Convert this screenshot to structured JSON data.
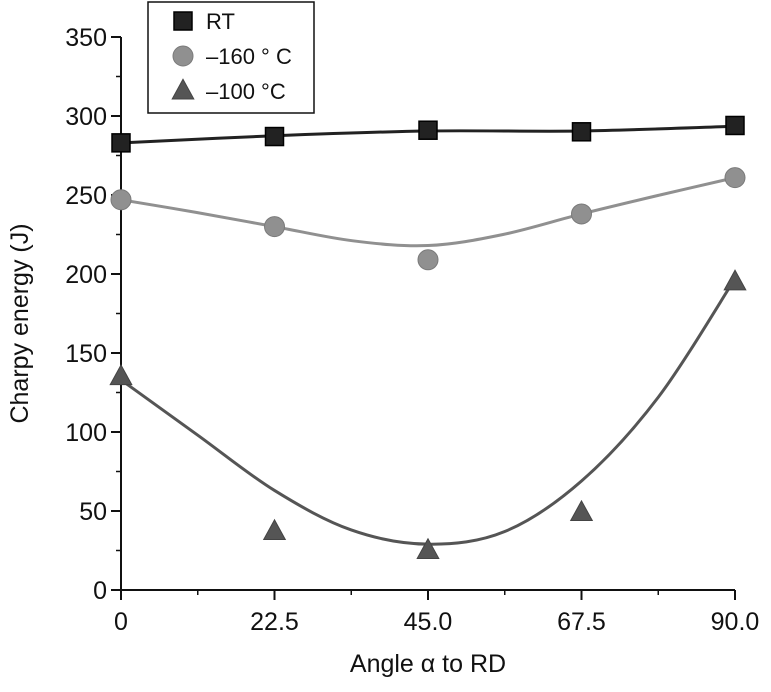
{
  "chart_data": {
    "type": "scatter",
    "title": "",
    "xlabel": "Angle α to RD",
    "ylabel": "Charpy energy (J)",
    "xlim": [
      0,
      90
    ],
    "ylim": [
      0,
      350
    ],
    "xticks": [
      0,
      22.5,
      45,
      67.5,
      90
    ],
    "xtick_labels": [
      "0",
      "22.5",
      "45.0",
      "67.5",
      "90.0"
    ],
    "yticks": [
      0,
      50,
      100,
      150,
      200,
      250,
      300,
      350
    ],
    "ytick_labels": [
      "0",
      "50",
      "100",
      "150",
      "200",
      "250",
      "300",
      "350"
    ],
    "grid": false,
    "legend_position": "top-left",
    "series": [
      {
        "name": "RT",
        "marker": "square",
        "color": "#222222",
        "x": [
          0,
          22.5,
          45,
          67.5,
          90
        ],
        "y": [
          283,
          287,
          291,
          290,
          294
        ],
        "fit_curve": [
          [
            0,
            283
          ],
          [
            22.5,
            287.5
          ],
          [
            45,
            290.5
          ],
          [
            67.5,
            290.5
          ],
          [
            90,
            293.5
          ]
        ]
      },
      {
        "name": "–160 ° C",
        "marker": "circle",
        "color": "#909090",
        "x": [
          0,
          22.5,
          45,
          67.5,
          90
        ],
        "y": [
          247,
          230,
          209,
          238,
          261
        ],
        "fit_curve": [
          [
            0,
            247
          ],
          [
            11,
            239
          ],
          [
            22.5,
            230
          ],
          [
            34,
            221
          ],
          [
            45,
            218
          ],
          [
            56,
            225
          ],
          [
            67.5,
            238
          ],
          [
            79,
            250
          ],
          [
            90,
            261
          ]
        ]
      },
      {
        "name": "–100 °C",
        "marker": "triangle",
        "color": "#555555",
        "x": [
          0,
          22.5,
          45,
          67.5,
          90
        ],
        "y": [
          135,
          37,
          25,
          49,
          195
        ],
        "fit_curve": [
          [
            0,
            133
          ],
          [
            11.25,
            98
          ],
          [
            22.5,
            63
          ],
          [
            33.75,
            38
          ],
          [
            45,
            29
          ],
          [
            56.25,
            37
          ],
          [
            67.5,
            69
          ],
          [
            78.75,
            122
          ],
          [
            90,
            197
          ]
        ]
      }
    ]
  }
}
